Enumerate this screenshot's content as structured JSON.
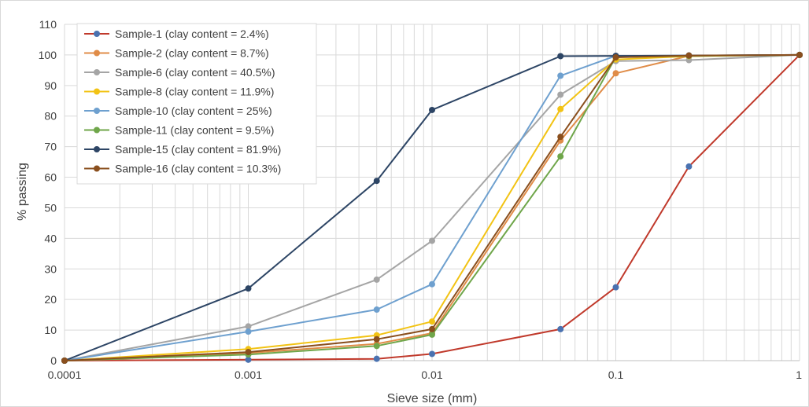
{
  "chart_data": {
    "type": "line",
    "xlabel": "Sieve size (mm)",
    "ylabel": "% passing",
    "x_scale": "log",
    "xlim": [
      0.0001,
      1
    ],
    "ylim": [
      0,
      110
    ],
    "x_ticks": [
      {
        "value": 0.0001,
        "label": "0.0001"
      },
      {
        "value": 0.001,
        "label": "0.001"
      },
      {
        "value": 0.01,
        "label": "0.01"
      },
      {
        "value": 0.1,
        "label": "0.1"
      },
      {
        "value": 1,
        "label": "1"
      }
    ],
    "y_ticks": [
      {
        "value": 0,
        "label": "0"
      },
      {
        "value": 10,
        "label": "10"
      },
      {
        "value": 20,
        "label": "20"
      },
      {
        "value": 30,
        "label": "30"
      },
      {
        "value": 40,
        "label": "40"
      },
      {
        "value": 50,
        "label": "50"
      },
      {
        "value": 60,
        "label": "60"
      },
      {
        "value": 70,
        "label": "70"
      },
      {
        "value": 80,
        "label": "80"
      },
      {
        "value": 90,
        "label": "90"
      },
      {
        "value": 100,
        "label": "100"
      },
      {
        "value": 110,
        "label": "110"
      }
    ],
    "grid": {
      "horizontal": true,
      "vertical_minor": true
    },
    "legend": {
      "position": "top-left"
    },
    "series": [
      {
        "name": "Sample-1 (clay content = 2.4%)",
        "color": "#c0392b",
        "marker_color": "#4a72b0",
        "x": [
          0.0001,
          0.001,
          0.005,
          0.01,
          0.05,
          0.1,
          0.25,
          1
        ],
        "y": [
          0,
          0.3,
          0.6,
          2.2,
          10.3,
          24,
          63.5,
          100
        ]
      },
      {
        "name": "Sample-2 (clay content = 8.7%)",
        "color": "#e08c48",
        "marker_color": "#e08c48",
        "x": [
          0.0001,
          0.001,
          0.005,
          0.01,
          0.05,
          0.1,
          0.25,
          1
        ],
        "y": [
          0,
          2.5,
          5.5,
          9,
          72,
          94,
          99.7,
          100
        ]
      },
      {
        "name": "Sample-6 (clay content = 40.5%)",
        "color": "#a5a5a5",
        "marker_color": "#a5a5a5",
        "x": [
          0.0001,
          0.001,
          0.005,
          0.01,
          0.05,
          0.1,
          0.25,
          1
        ],
        "y": [
          0,
          11.2,
          26.5,
          39.2,
          87,
          98,
          98.3,
          100
        ]
      },
      {
        "name": "Sample-8 (clay content = 11.9%)",
        "color": "#f2c314",
        "marker_color": "#f2c314",
        "x": [
          0.0001,
          0.001,
          0.005,
          0.01,
          0.05,
          0.1,
          0.25,
          1
        ],
        "y": [
          0,
          3.8,
          8.3,
          12.8,
          82.3,
          98.5,
          99.6,
          100
        ]
      },
      {
        "name": "Sample-10 (clay content = 25%)",
        "color": "#6ea0cf",
        "marker_color": "#6ea0cf",
        "x": [
          0.0001,
          0.001,
          0.005,
          0.01,
          0.05,
          0.1,
          0.25,
          1
        ],
        "y": [
          0,
          9.5,
          16.7,
          25,
          93.2,
          99.7,
          99.8,
          100
        ]
      },
      {
        "name": "Sample-11 (clay content = 9.5%)",
        "color": "#6fa64a",
        "marker_color": "#6fa64a",
        "x": [
          0.0001,
          0.001,
          0.005,
          0.01,
          0.05,
          0.1,
          0.25,
          1
        ],
        "y": [
          0,
          2,
          4.8,
          8.5,
          66.8,
          99.3,
          99.7,
          100
        ]
      },
      {
        "name": "Sample-15 (clay content = 81.9%)",
        "color": "#2d4565",
        "marker_color": "#2d4565",
        "x": [
          0.0001,
          0.001,
          0.005,
          0.01,
          0.05,
          0.1,
          0.25,
          1
        ],
        "y": [
          0,
          23.6,
          58.8,
          82,
          99.6,
          99.7,
          99.8,
          100
        ]
      },
      {
        "name": "Sample-16 (clay content = 10.3%)",
        "color": "#8a4f1e",
        "marker_color": "#8a4f1e",
        "x": [
          0.0001,
          0.001,
          0.005,
          0.01,
          0.05,
          0.1,
          0.25,
          1
        ],
        "y": [
          0,
          2.8,
          7,
          10.3,
          73.2,
          99.2,
          99.8,
          100
        ]
      }
    ]
  }
}
